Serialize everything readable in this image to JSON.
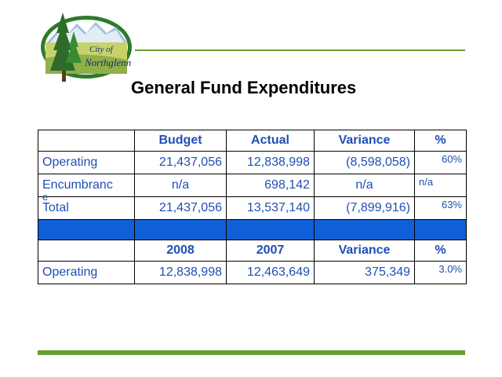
{
  "logo": {
    "line1": "City of",
    "line2": "Northglenn",
    "initial": "N"
  },
  "page_title": "General Fund Expenditures",
  "colors": {
    "accent_green": "#66a032",
    "text_blue": "#1f4fb5",
    "band_blue": "#0f5fd6"
  },
  "table": {
    "header1": [
      "",
      "Budget",
      "Actual",
      "Variance",
      "%"
    ],
    "rows1": [
      {
        "label": "Operating",
        "budget": "21,437,056",
        "actual": "12,838,998",
        "variance": "(8,598,058)",
        "pct": "60%"
      },
      {
        "label": "Encumbranc",
        "label_wrap": "e",
        "budget": "n/a",
        "actual": "698,142",
        "variance": "n/a",
        "pct": "n/a"
      },
      {
        "label": "Total",
        "budget": "21,437,056",
        "actual": "13,537,140",
        "variance": "(7,899,916)",
        "pct": "63%"
      }
    ],
    "header2": [
      "",
      "2008",
      "2007",
      "Variance",
      "%"
    ],
    "rows2": [
      {
        "label": "Operating",
        "y2008": "12,838,998",
        "y2007": "12,463,649",
        "variance": "375,349",
        "pct": "3.0%"
      }
    ]
  }
}
